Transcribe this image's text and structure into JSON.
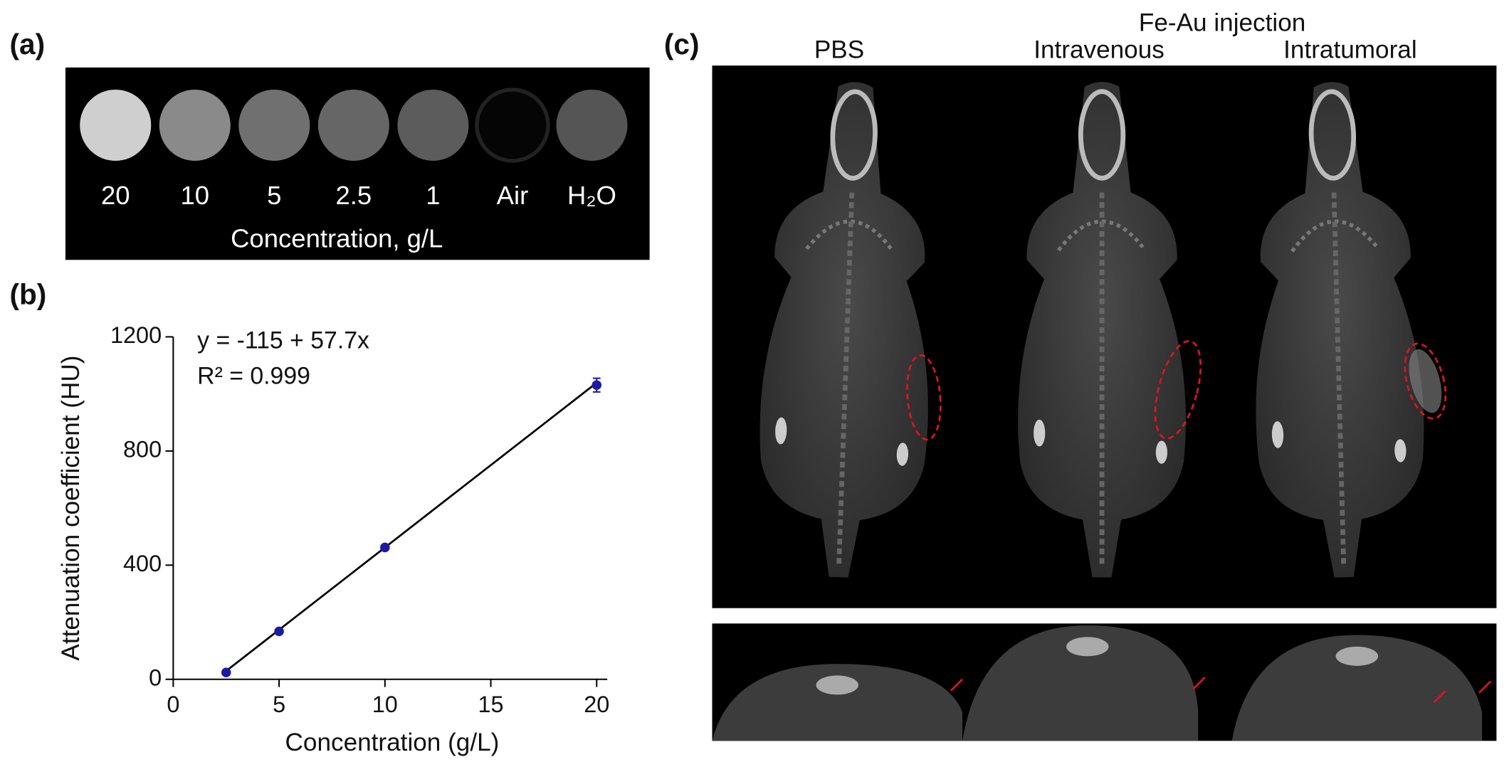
{
  "panels": {
    "a": {
      "label": "(a)",
      "samples": [
        "20",
        "10",
        "5",
        "2.5",
        "1",
        "Air",
        "H₂O"
      ],
      "axis_label": "Concentration, g/L"
    },
    "b": {
      "label": "(b)"
    },
    "c": {
      "label": "(c)",
      "group_title": "Fe-Au injection",
      "columns": [
        "PBS",
        "Intravenous",
        "Intratumoral"
      ]
    }
  },
  "chart_data": {
    "type": "scatter",
    "x": [
      2.5,
      5,
      10,
      20
    ],
    "values": [
      24,
      168,
      462,
      1031
    ],
    "errors": [
      8,
      8,
      8,
      24
    ],
    "color": "#1a1aa6",
    "fit": {
      "intercept": -115,
      "slope": 57.7
    },
    "annotations": [
      "y = -115 + 57.7x",
      "R² = 0.999"
    ],
    "xlabel": "Concentration (g/L)",
    "ylabel": "Attenuation coefficient (HU)",
    "xlim": [
      0,
      20.5
    ],
    "ylim": [
      0,
      1200
    ],
    "xticks": [
      0,
      5,
      10,
      15,
      20
    ],
    "yticks": [
      0,
      400,
      800,
      1200
    ]
  }
}
